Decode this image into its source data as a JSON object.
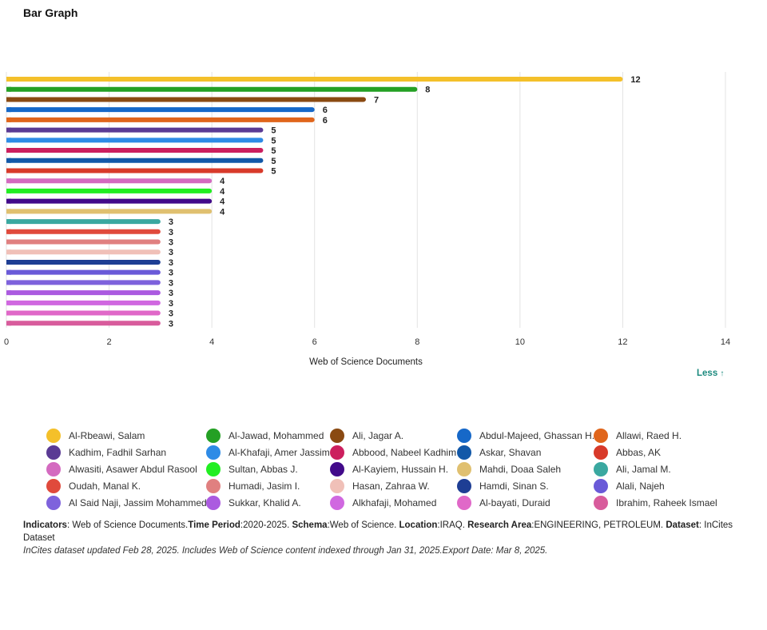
{
  "page": {
    "title": "Bar Graph",
    "less_button": "Less",
    "less_icon": "arrow-up-icon"
  },
  "chart_data": {
    "type": "bar",
    "orientation": "horizontal",
    "title": "Bar Graph",
    "xlabel": "Web of Science Documents",
    "ylabel": "",
    "xlim": [
      0,
      14
    ],
    "xticks": [
      0,
      2,
      4,
      6,
      8,
      10,
      12,
      14
    ],
    "grid": true,
    "legend_placement": "bottom",
    "categories": [
      "Al-Rbeawi, Salam",
      "Al-Jawad, Mohammed",
      "Ali, Jagar A.",
      "Abdul-Majeed, Ghassan H.",
      "Allawi, Raed H.",
      "Kadhim, Fadhil Sarhan",
      "Al-Khafaji, Amer Jassim",
      "Abbood, Nabeel Kadhim",
      "Askar, Shavan",
      "Abbas, AK",
      "Alwasiti, Asawer Abdul Rasool",
      "Sultan, Abbas J.",
      "Al-Kayiem, Hussain H.",
      "Mahdi, Doaa Saleh",
      "Ali, Jamal M.",
      "Oudah, Manal K.",
      "Humadi, Jasim I.",
      "Hasan, Zahraa W.",
      "Hamdi, Sinan S.",
      "Alali, Najeh",
      "Al Said Naji, Jassim Mohammed",
      "Sukkar, Khalid A.",
      "Alkhafaji, Mohamed",
      "Al-bayati, Duraid",
      "Ibrahim, Raheek Ismael"
    ],
    "values": [
      12,
      8,
      7,
      6,
      6,
      5,
      5,
      5,
      5,
      5,
      4,
      4,
      4,
      4,
      3,
      3,
      3,
      3,
      3,
      3,
      3,
      3,
      3,
      3,
      3
    ],
    "colors": [
      "#f4c02a",
      "#24a024",
      "#8a4a12",
      "#1668c8",
      "#e0651b",
      "#5a3a94",
      "#2e8be6",
      "#cc1f5e",
      "#1258a8",
      "#d83a2a",
      "#d46ac0",
      "#22ee22",
      "#420a8a",
      "#e0c070",
      "#3aa8a0",
      "#e04a3c",
      "#e08080",
      "#f0c0b8",
      "#1e3e94",
      "#6a5ad8",
      "#7e62dc",
      "#ab5ae0",
      "#d068e0",
      "#e068c8",
      "#d85c9c"
    ]
  },
  "footer": {
    "indicators_label": "Indicators",
    "indicators_value": ": Web of Science Documents.",
    "time_period_label": "Time Period",
    "time_period_value": ":2020-2025. ",
    "schema_label": "Schema",
    "schema_value": ":Web of Science. ",
    "location_label": "Location",
    "location_value": ":IRAQ. ",
    "research_area_label": "Research Area",
    "research_area_value": ":ENGINEERING, PETROLEUM. ",
    "dataset_label": "Dataset",
    "dataset_value": ": InCites Dataset",
    "note": "InCites dataset updated Feb 28, 2025. Includes Web of Science content indexed through Jan 31, 2025.Export Date: Mar 8, 2025."
  }
}
